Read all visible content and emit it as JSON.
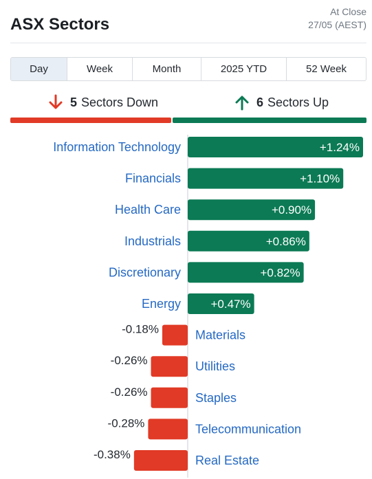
{
  "header": {
    "title": "ASX Sectors",
    "status_line1": "At Close",
    "status_line2": "27/05 (AEST)"
  },
  "tabs": [
    {
      "label": "Day",
      "active": true
    },
    {
      "label": "Week",
      "active": false
    },
    {
      "label": "Month",
      "active": false
    },
    {
      "label": "2025 YTD",
      "active": false
    },
    {
      "label": "52 Week",
      "active": false
    }
  ],
  "breadth": {
    "down_count": "5",
    "down_label": "Sectors Down",
    "up_count": "6",
    "up_label": "Sectors Up"
  },
  "colors": {
    "positive": "#0b7a55",
    "negative": "#e13a26",
    "label": "#2569c3",
    "tab_active_bg": "#e8eef5"
  },
  "icons": {
    "down": "arrow-down-icon",
    "up": "arrow-up-icon"
  },
  "chart_data": {
    "type": "bar",
    "orientation": "horizontal",
    "categories": [
      "Information Technology",
      "Financials",
      "Health Care",
      "Industrials",
      "Discretionary",
      "Energy",
      "Materials",
      "Utilities",
      "Staples",
      "Telecommunication",
      "Real Estate"
    ],
    "values": [
      1.24,
      1.1,
      0.9,
      0.86,
      0.82,
      0.47,
      -0.18,
      -0.26,
      -0.26,
      -0.28,
      -0.38
    ],
    "value_labels": [
      "+1.24%",
      "+1.10%",
      "+0.90%",
      "+0.86%",
      "+0.82%",
      "+0.47%",
      "-0.18%",
      "-0.26%",
      "-0.26%",
      "-0.28%",
      "-0.38%"
    ],
    "unit": "%"
  }
}
